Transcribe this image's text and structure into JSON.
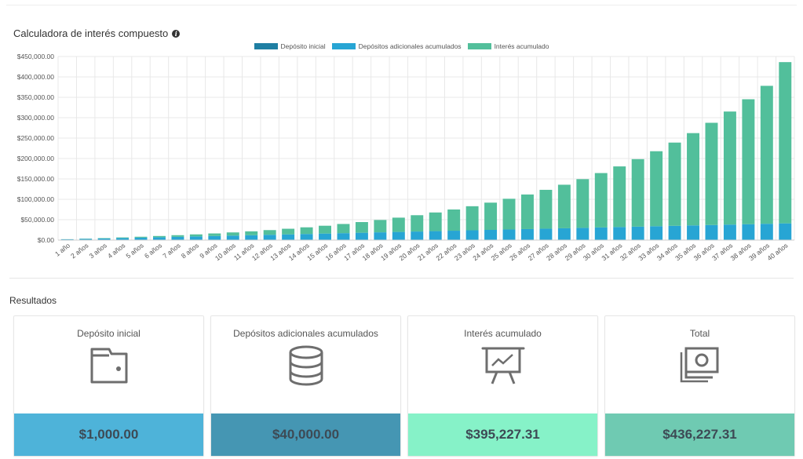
{
  "header": {
    "title": "Calculadora de interés compuesto",
    "info_icon": "info-icon"
  },
  "colors": {
    "initial": "#1f7fa3",
    "additional": "#27a5d4",
    "interest": "#52bf9b",
    "grid": "#e8e8e8",
    "card_initial": "#4eb3d9",
    "card_additional": "#4596b3",
    "card_interest": "#86f2c8",
    "card_total": "#6fcab2"
  },
  "chart_data": {
    "type": "bar",
    "stacked": true,
    "title": "",
    "xlabel": "",
    "ylabel": "",
    "ylim": [
      0,
      450000
    ],
    "yticks": [
      "$0.00",
      "$50,000.00",
      "$100,000.00",
      "$150,000.00",
      "$200,000.00",
      "$250,000.00",
      "$300,000.00",
      "$350,000.00",
      "$400,000.00",
      "$450,000.00"
    ],
    "legend": "top-center",
    "grid": true,
    "categories": [
      "1 año",
      "2 años",
      "3 años",
      "4 años",
      "5 años",
      "6 años",
      "7 años",
      "8 años",
      "9 años",
      "10 años",
      "11 años",
      "12 años",
      "13 años",
      "14 años",
      "15 años",
      "16 años",
      "17 años",
      "18 años",
      "19 años",
      "20 años",
      "21 años",
      "22 años",
      "23 años",
      "24 años",
      "25 años",
      "26 años",
      "27 años",
      "28 años",
      "29 años",
      "30 años",
      "31 años",
      "32 años",
      "33 años",
      "34 años",
      "35 años",
      "36 años",
      "37 años",
      "38 años",
      "39 años",
      "40 años"
    ],
    "series": [
      {
        "name": "Depósito inicial",
        "values": [
          1000,
          1000,
          1000,
          1000,
          1000,
          1000,
          1000,
          1000,
          1000,
          1000,
          1000,
          1000,
          1000,
          1000,
          1000,
          1000,
          1000,
          1000,
          1000,
          1000,
          1000,
          1000,
          1000,
          1000,
          1000,
          1000,
          1000,
          1000,
          1000,
          1000,
          1000,
          1000,
          1000,
          1000,
          1000,
          1000,
          1000,
          1000,
          1000,
          1000
        ]
      },
      {
        "name": "Depósitos adicionales acumulados",
        "values": [
          1000,
          2000,
          3000,
          4000,
          5000,
          6000,
          7000,
          8000,
          9000,
          10000,
          11000,
          12000,
          13000,
          14000,
          15000,
          16000,
          17000,
          18000,
          19000,
          20000,
          21000,
          22000,
          23000,
          24000,
          25000,
          26000,
          27000,
          28000,
          29000,
          30000,
          31000,
          32000,
          33000,
          34000,
          35000,
          36000,
          37000,
          38000,
          39000,
          40000
        ]
      },
      {
        "name": "Interés acumulado",
        "values": [
          200,
          500,
          900,
          1500,
          2200,
          3000,
          4000,
          5000,
          6300,
          7800,
          9500,
          11500,
          13800,
          16300,
          19200,
          22500,
          26200,
          30300,
          35000,
          40000,
          45700,
          52000,
          59000,
          66800,
          75300,
          84800,
          95200,
          106700,
          119400,
          133300,
          148600,
          165400,
          183800,
          204000,
          226200,
          250500,
          277100,
          306200,
          338100,
          395227.31
        ]
      }
    ]
  },
  "results": {
    "title": "Resultados",
    "cards": [
      {
        "title": "Depósito inicial",
        "value": "$1,000.00",
        "icon": "wallet-icon"
      },
      {
        "title": "Depósitos adicionales acumulados",
        "value": "$40,000.00",
        "icon": "coins-stack-icon"
      },
      {
        "title": "Interés acumulado",
        "value": "$395,227.31",
        "icon": "chart-presentation-icon"
      },
      {
        "title": "Total",
        "value": "$436,227.31",
        "icon": "money-bills-icon"
      }
    ]
  }
}
